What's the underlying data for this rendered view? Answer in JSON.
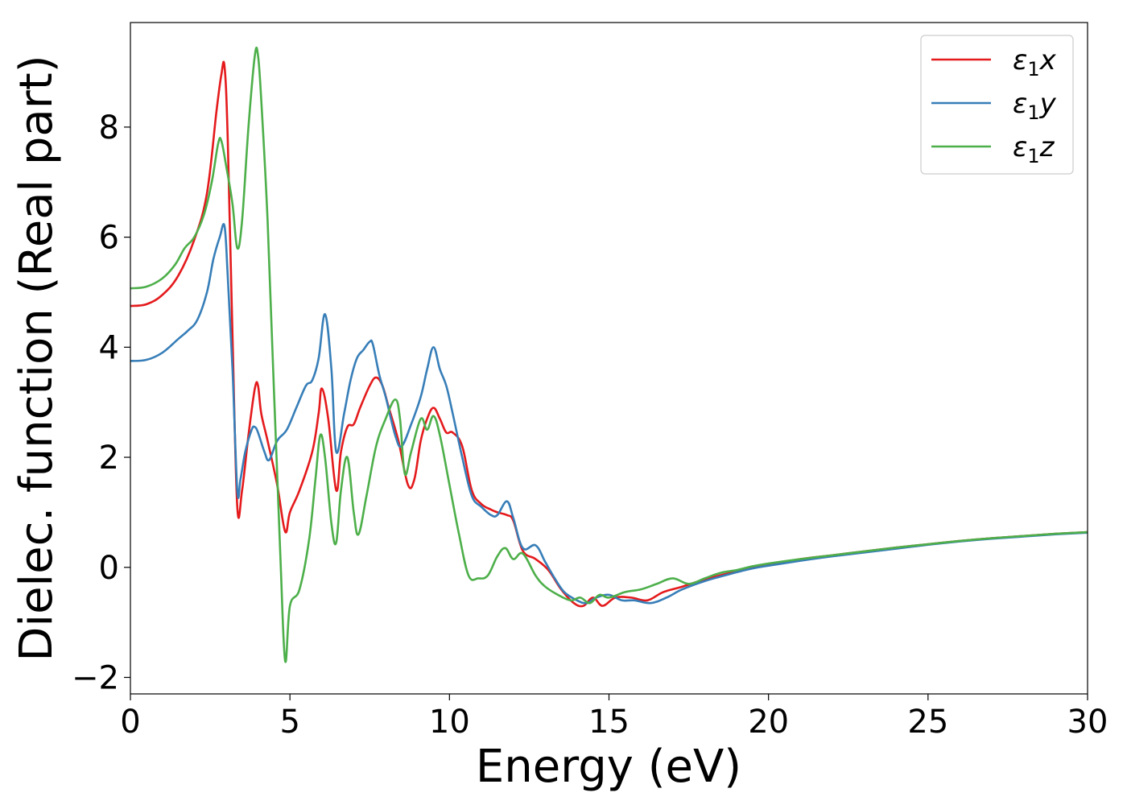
{
  "chart_data": {
    "type": "line",
    "xlabel": "Energy (eV)",
    "ylabel": "Dielec. function (Real part)",
    "xlim": [
      0,
      30
    ],
    "ylim": [
      -2.3,
      9.9
    ],
    "xticks": [
      0,
      5,
      10,
      15,
      20,
      25,
      30
    ],
    "xtick_labels": [
      "0",
      "5",
      "10",
      "15",
      "20",
      "25",
      "30"
    ],
    "yticks": [
      -2,
      0,
      2,
      4,
      6,
      8
    ],
    "ytick_labels": [
      "−2",
      "0",
      "2",
      "4",
      "6",
      "8"
    ],
    "grid": false,
    "legend_position": "top-right",
    "series": [
      {
        "name": "ε1x",
        "label_base": "ε",
        "label_sub": "1",
        "label_var": "x",
        "color": "#e41a1c",
        "x": [
          0,
          0.5,
          1.0,
          1.5,
          2.0,
          2.4,
          2.7,
          2.85,
          2.95,
          3.05,
          3.2,
          3.35,
          3.5,
          3.7,
          3.9,
          4.0,
          4.1,
          4.3,
          4.6,
          4.85,
          5.0,
          5.3,
          5.7,
          5.9,
          6.0,
          6.2,
          6.45,
          6.6,
          6.8,
          7.0,
          7.2,
          7.5,
          7.7,
          7.9,
          8.1,
          8.4,
          8.7,
          8.9,
          9.1,
          9.3,
          9.5,
          9.7,
          9.9,
          10.1,
          10.4,
          10.7,
          11.0,
          11.3,
          11.5,
          11.8,
          12.0,
          12.3,
          12.7,
          13.1,
          13.5,
          13.9,
          14.2,
          14.5,
          14.8,
          15.2,
          15.7,
          16.2,
          16.7,
          17.3,
          18.0,
          18.8,
          19.5,
          20.0,
          21,
          22,
          23,
          24,
          25,
          26,
          27,
          28,
          29,
          30
        ],
        "y": [
          4.75,
          4.78,
          4.95,
          5.3,
          5.95,
          6.8,
          8.3,
          8.95,
          9.1,
          7.8,
          4.2,
          1.1,
          1.4,
          2.4,
          3.25,
          3.3,
          2.8,
          2.3,
          1.5,
          0.65,
          1.0,
          1.4,
          2.1,
          2.8,
          3.25,
          2.7,
          1.4,
          2.1,
          2.55,
          2.6,
          2.9,
          3.3,
          3.45,
          3.3,
          2.9,
          2.3,
          1.5,
          1.6,
          2.3,
          2.7,
          2.9,
          2.7,
          2.45,
          2.45,
          2.2,
          1.4,
          1.15,
          1.05,
          1.0,
          0.95,
          0.85,
          0.3,
          0.15,
          -0.05,
          -0.4,
          -0.65,
          -0.7,
          -0.55,
          -0.7,
          -0.55,
          -0.55,
          -0.6,
          -0.45,
          -0.35,
          -0.22,
          -0.1,
          0.0,
          0.05,
          0.15,
          0.22,
          0.29,
          0.36,
          0.42,
          0.48,
          0.53,
          0.57,
          0.61,
          0.64
        ]
      },
      {
        "name": "ε1y",
        "label_base": "ε",
        "label_sub": "1",
        "label_var": "y",
        "color": "#377eb8",
        "x": [
          0,
          0.5,
          1.0,
          1.5,
          1.8,
          2.1,
          2.4,
          2.6,
          2.8,
          2.95,
          3.05,
          3.2,
          3.35,
          3.45,
          3.6,
          3.8,
          3.9,
          4.0,
          4.2,
          4.35,
          4.6,
          4.9,
          5.2,
          5.5,
          5.7,
          5.9,
          6.1,
          6.3,
          6.45,
          6.7,
          6.9,
          7.1,
          7.3,
          7.5,
          7.6,
          7.8,
          8.0,
          8.3,
          8.5,
          8.8,
          9.1,
          9.3,
          9.5,
          9.7,
          9.9,
          10.1,
          10.4,
          10.7,
          11.0,
          11.3,
          11.5,
          11.8,
          12.0,
          12.3,
          12.7,
          13.0,
          13.3,
          13.6,
          14.0,
          14.3,
          14.6,
          15.0,
          15.4,
          15.8,
          16.3,
          16.8,
          17.3,
          18.0,
          18.8,
          19.5,
          20.0,
          21,
          22,
          23,
          24,
          25,
          26,
          27,
          28,
          29,
          30
        ],
        "y": [
          3.75,
          3.77,
          3.9,
          4.15,
          4.3,
          4.5,
          5.0,
          5.6,
          6.0,
          6.2,
          5.3,
          3.6,
          1.4,
          1.6,
          2.1,
          2.5,
          2.55,
          2.45,
          2.1,
          1.95,
          2.3,
          2.5,
          2.9,
          3.3,
          3.4,
          3.8,
          4.6,
          3.6,
          2.1,
          2.8,
          3.4,
          3.8,
          3.95,
          4.1,
          4.05,
          3.5,
          3.1,
          2.4,
          2.2,
          2.6,
          3.1,
          3.6,
          4.0,
          3.6,
          3.3,
          2.8,
          2.0,
          1.3,
          1.1,
          0.95,
          0.95,
          1.2,
          0.9,
          0.35,
          0.4,
          0.1,
          -0.2,
          -0.45,
          -0.6,
          -0.65,
          -0.55,
          -0.5,
          -0.6,
          -0.6,
          -0.65,
          -0.55,
          -0.4,
          -0.25,
          -0.12,
          -0.02,
          0.03,
          0.12,
          0.2,
          0.27,
          0.34,
          0.41,
          0.47,
          0.52,
          0.56,
          0.6,
          0.63
        ]
      },
      {
        "name": "ε1z",
        "label_base": "ε",
        "label_sub": "1",
        "label_var": "z",
        "color": "#4daf4a",
        "x": [
          0,
          0.5,
          1.0,
          1.4,
          1.7,
          2.0,
          2.3,
          2.55,
          2.75,
          2.85,
          3.0,
          3.2,
          3.35,
          3.5,
          3.7,
          3.9,
          4.0,
          4.1,
          4.3,
          4.5,
          4.7,
          4.85,
          5.0,
          5.3,
          5.6,
          5.8,
          5.95,
          6.1,
          6.3,
          6.45,
          6.6,
          6.8,
          7.0,
          7.15,
          7.4,
          7.7,
          8.0,
          8.3,
          8.45,
          8.6,
          8.8,
          9.1,
          9.3,
          9.5,
          9.7,
          10.0,
          10.3,
          10.6,
          10.9,
          11.2,
          11.5,
          11.75,
          12.0,
          12.3,
          12.7,
          13.0,
          13.4,
          13.8,
          14.1,
          14.4,
          14.7,
          15.0,
          15.5,
          16.0,
          16.5,
          17.0,
          17.5,
          18.0,
          18.5,
          19.0,
          19.5,
          20.0,
          21,
          22,
          23,
          24,
          25,
          26,
          27,
          28,
          29,
          30
        ],
        "y": [
          5.07,
          5.1,
          5.25,
          5.5,
          5.8,
          6.0,
          6.4,
          7.0,
          7.7,
          7.75,
          7.3,
          6.6,
          5.8,
          6.3,
          8.0,
          9.3,
          9.3,
          8.5,
          6.3,
          3.2,
          0.2,
          -1.7,
          -0.7,
          -0.4,
          0.5,
          1.6,
          2.4,
          2.0,
          0.8,
          0.45,
          1.4,
          2.0,
          1.0,
          0.6,
          1.3,
          2.2,
          2.7,
          3.05,
          2.7,
          1.7,
          2.1,
          2.7,
          2.5,
          2.75,
          2.4,
          1.5,
          0.6,
          -0.15,
          -0.2,
          -0.15,
          0.2,
          0.35,
          0.15,
          0.25,
          -0.15,
          -0.35,
          -0.5,
          -0.6,
          -0.55,
          -0.65,
          -0.5,
          -0.55,
          -0.45,
          -0.4,
          -0.3,
          -0.2,
          -0.3,
          -0.2,
          -0.1,
          -0.05,
          0.02,
          0.07,
          0.15,
          0.22,
          0.29,
          0.36,
          0.42,
          0.48,
          0.53,
          0.57,
          0.61,
          0.64
        ]
      }
    ]
  }
}
